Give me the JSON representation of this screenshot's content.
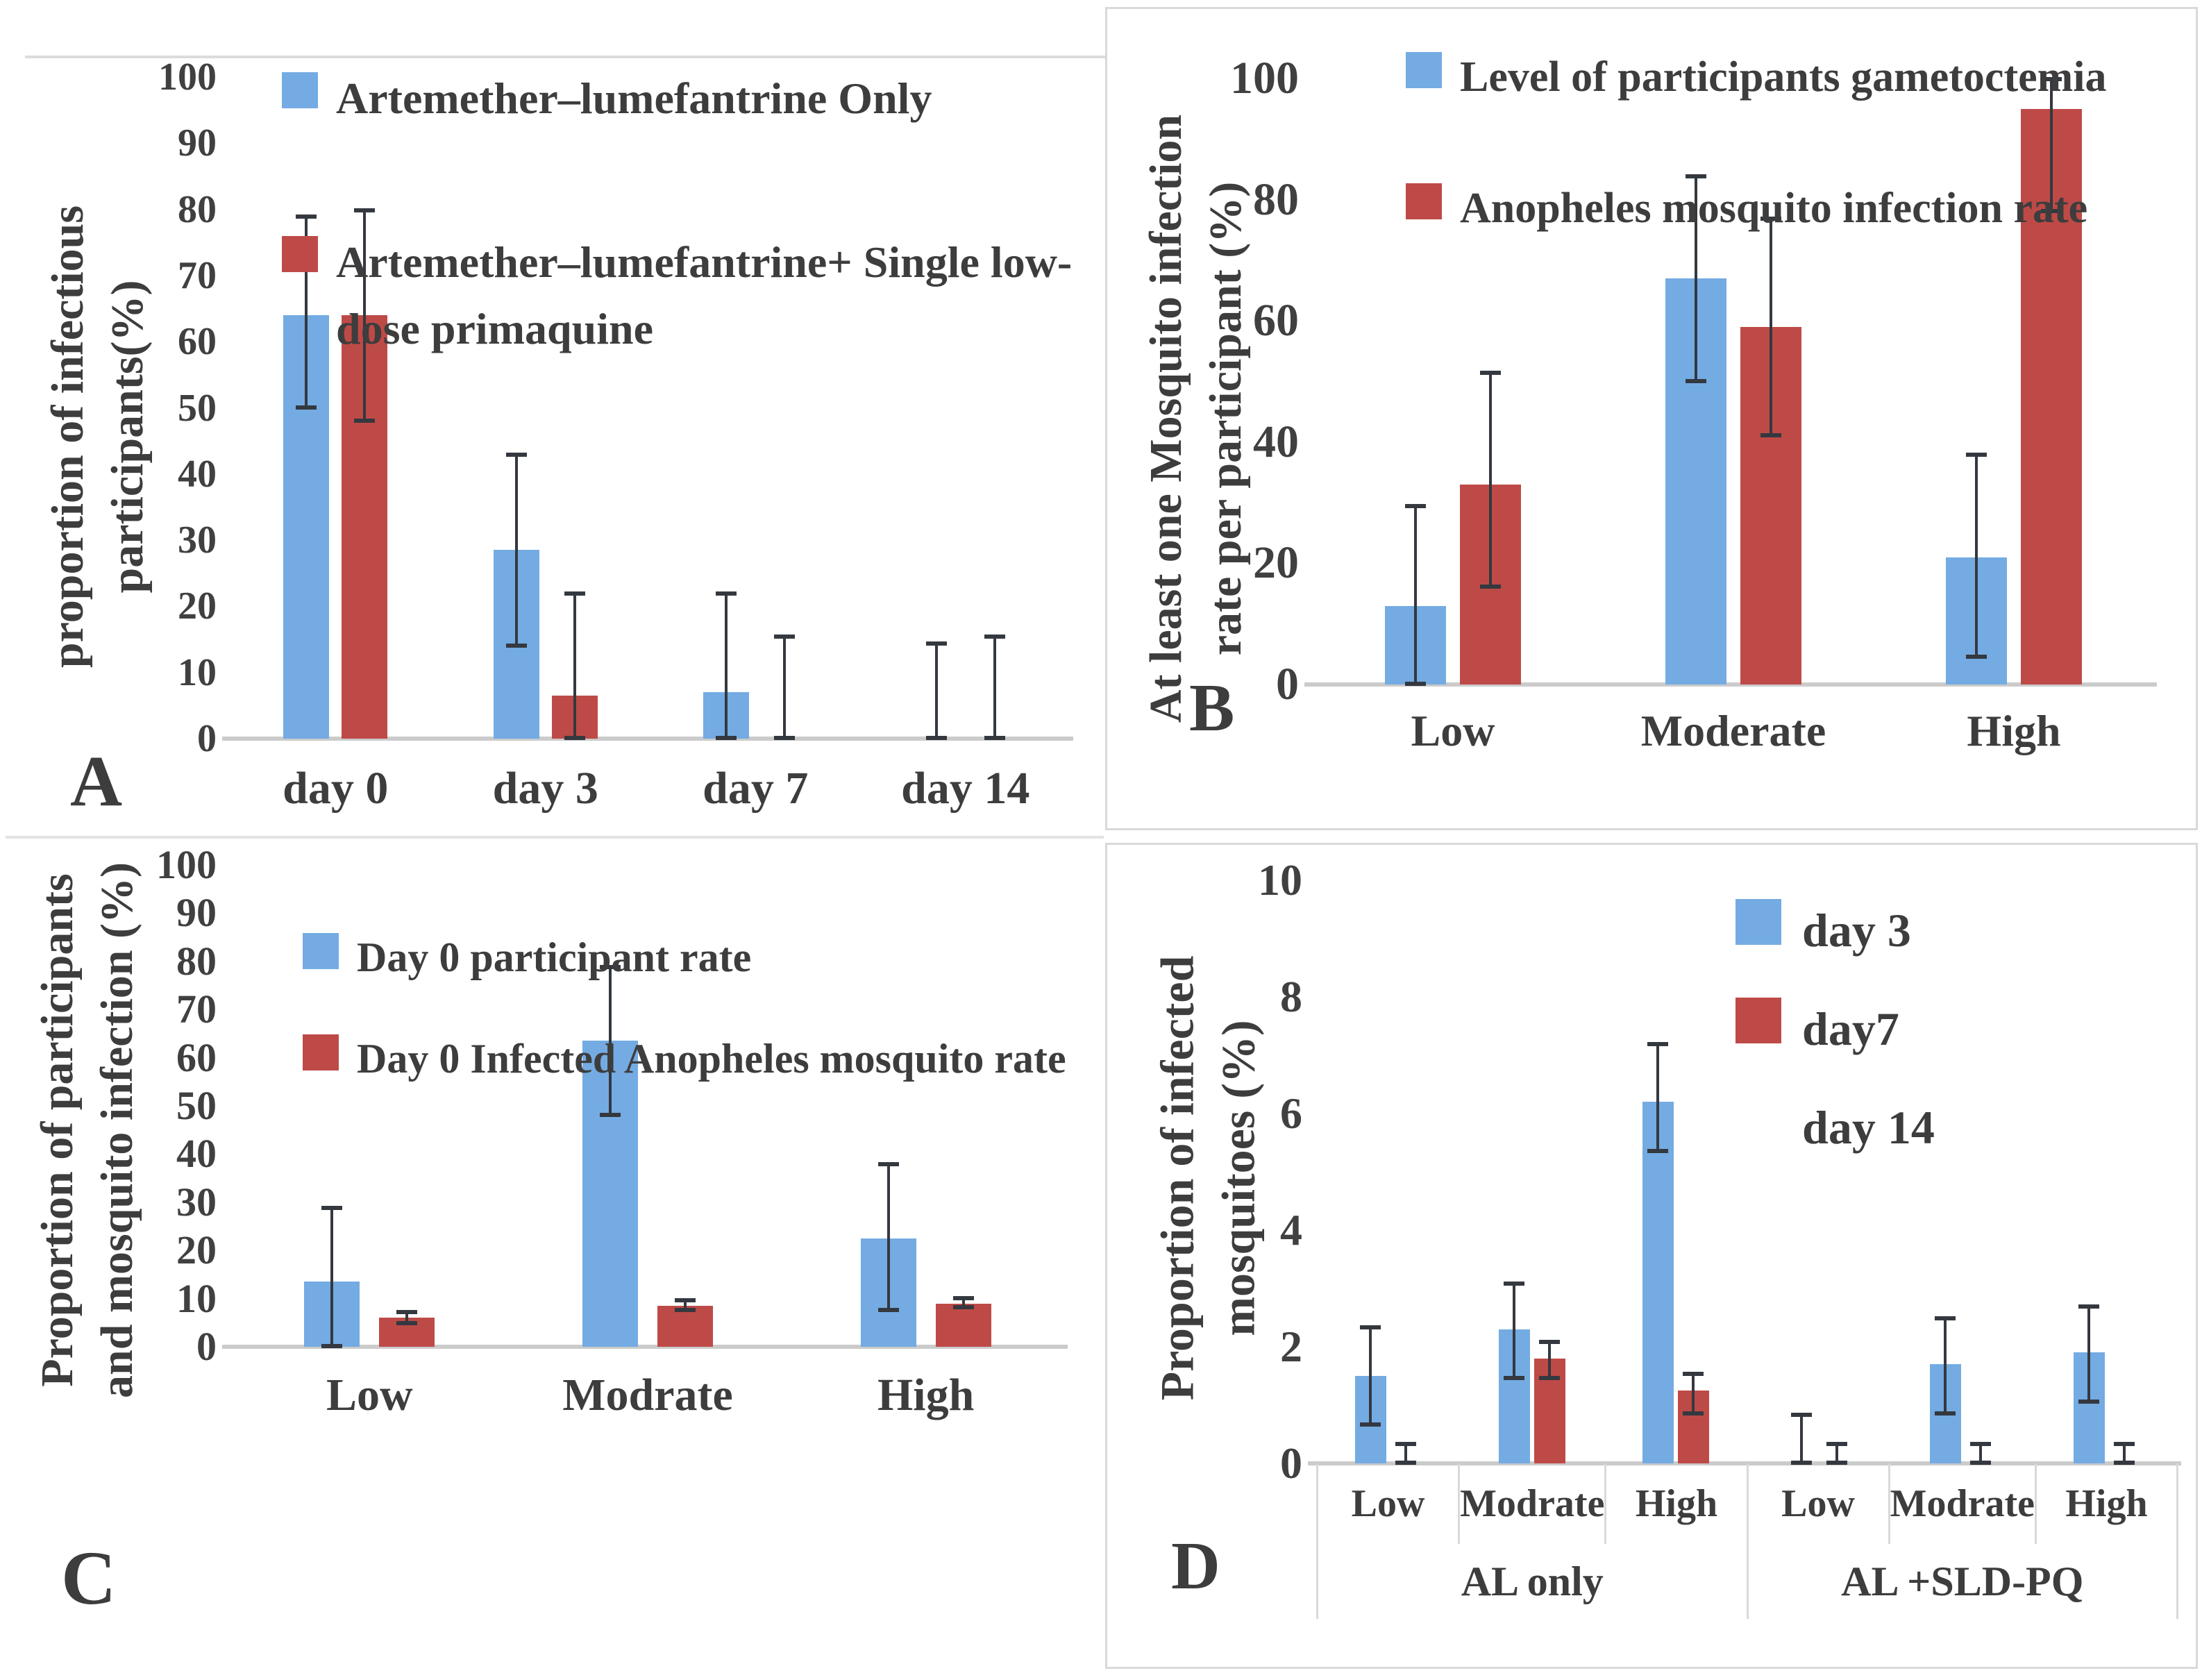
{
  "figure": {
    "background": "#ffffff",
    "panel_border_color": "#d9d9d9",
    "axis_line_color": "#cbcbcb",
    "error_bar_color": "#34383f",
    "text_color": "#3d3d3d",
    "series_blue": "#74ABE2",
    "series_red": "#BE4A47"
  },
  "chart_data": [
    {
      "type": "bar",
      "panel_letter": "A",
      "ylabel": "proportion of infectious participants(%)",
      "ylabel_lines": [
        "proportion of infectious",
        "participants(%)"
      ],
      "ylim": [
        0,
        100
      ],
      "ytick_step": 10,
      "yticks": [
        0,
        10,
        20,
        30,
        40,
        50,
        60,
        70,
        80,
        90,
        100
      ],
      "grid": false,
      "legend_position": "top-inside",
      "categories": [
        "day 0",
        "day 3",
        "day 7",
        "day 14"
      ],
      "legend": [
        {
          "label": "Artemether–lumefantrine Only",
          "color": "#74ABE2"
        },
        {
          "label": "Artemether–lumefantrine+ Single low-dose primaquine",
          "color": "#BE4A47"
        }
      ],
      "series": [
        {
          "name": "Artemether–lumefantrine Only",
          "color": "#74ABE2",
          "values": [
            64,
            28.5,
            7,
            0
          ],
          "err_low": [
            50,
            14,
            0,
            0
          ],
          "err_high": [
            79,
            43,
            22,
            14.5
          ]
        },
        {
          "name": "Artemether–lumefantrine+ Single low-dose primaquine",
          "color": "#BE4A47",
          "values": [
            64,
            6.5,
            0,
            0
          ],
          "err_low": [
            48,
            0,
            0,
            0
          ],
          "err_high": [
            80,
            22,
            15.5,
            15.5
          ]
        }
      ]
    },
    {
      "type": "bar",
      "panel_letter": "B",
      "ylabel": "At least one Mosquito infection rate per participant (%)",
      "ylabel_lines": [
        "At least one Mosquito infection",
        "rate per participant (%)"
      ],
      "ylim": [
        0,
        100
      ],
      "ytick_step": 20,
      "yticks": [
        0,
        20,
        40,
        60,
        80,
        100
      ],
      "grid": false,
      "legend_position": "top-inside",
      "categories": [
        "Low",
        "Moderate",
        "High"
      ],
      "legend": [
        {
          "label": "Level of participants gametoctemia",
          "color": "#74ABE2"
        },
        {
          "label": "Anopheles mosquito infection rate",
          "color": "#BE4A47"
        }
      ],
      "series": [
        {
          "name": "Level of participants gametoctemia",
          "color": "#74ABE2",
          "values": [
            13,
            67,
            21
          ],
          "err_low": [
            0,
            50,
            4.5
          ],
          "err_high": [
            29.5,
            84,
            38
          ]
        },
        {
          "name": "Anopheles mosquito infection rate",
          "color": "#BE4A47",
          "values": [
            33,
            59,
            95
          ],
          "err_low": [
            16,
            41,
            78
          ],
          "err_high": [
            51.5,
            77,
            100
          ]
        }
      ]
    },
    {
      "type": "bar",
      "panel_letter": "C",
      "ylabel": "Proportion of  participants and mosquito infection (%)",
      "ylabel_lines": [
        "Proportion of  participants",
        "and mosquito infection (%)"
      ],
      "ylim": [
        0,
        100
      ],
      "ytick_step": 10,
      "yticks": [
        0,
        10,
        20,
        30,
        40,
        50,
        60,
        70,
        80,
        90,
        100
      ],
      "grid": false,
      "legend_position": "top-inside",
      "categories": [
        "Low",
        "Modrate",
        "High"
      ],
      "legend": [
        {
          "label": "Day 0 participant rate",
          "color": "#74ABE2"
        },
        {
          "label": "Day 0 Infected Anopheles mosquito rate",
          "color": "#BE4A47"
        }
      ],
      "series": [
        {
          "name": "Day 0 participant rate",
          "color": "#74ABE2",
          "values": [
            13.5,
            63.5,
            22.5
          ],
          "err_low": [
            0,
            48,
            7.5
          ],
          "err_high": [
            29,
            79,
            38
          ]
        },
        {
          "name": "Day 0 Infected Anopheles mosquito rate",
          "color": "#BE4A47",
          "values": [
            6,
            8.5,
            9
          ],
          "err_low": [
            4.8,
            7.5,
            8
          ],
          "err_high": [
            7.3,
            9.8,
            10.3
          ]
        }
      ]
    },
    {
      "type": "bar",
      "panel_letter": "D",
      "ylabel": "Proportion of infected mosquitoes (%)",
      "ylabel_lines": [
        "Proportion of infected",
        "mosquitoes (%)"
      ],
      "ylim": [
        0,
        10
      ],
      "ytick_step": 2,
      "yticks": [
        0,
        2,
        4,
        6,
        8,
        10
      ],
      "grid": false,
      "legend_position": "top-right-inside",
      "categories": [
        "Low",
        "Modrate",
        "High",
        "Low",
        "Modrate",
        "High"
      ],
      "groups": [
        {
          "label": "AL only",
          "span": 3
        },
        {
          "label": "AL +SLD-PQ",
          "span": 3
        }
      ],
      "legend": [
        {
          "label": "day 3",
          "color": "#74ABE2"
        },
        {
          "label": "day7",
          "color": "#BE4A47"
        },
        {
          "label": "day 14",
          "color": null
        }
      ],
      "series": [
        {
          "name": "day 3",
          "color": "#74ABE2",
          "values": [
            1.5,
            2.3,
            6.2,
            0,
            1.7,
            1.9
          ],
          "err_low": [
            0.65,
            1.45,
            5.35,
            0,
            0.85,
            1.05
          ],
          "err_high": [
            2.35,
            3.1,
            7.2,
            0.85,
            2.5,
            2.7
          ]
        },
        {
          "name": "day7",
          "color": "#BE4A47",
          "values": [
            0,
            1.8,
            1.25,
            0,
            0,
            0
          ],
          "err_low": [
            0,
            1.45,
            0.85,
            0,
            0,
            0
          ],
          "err_high": [
            0.35,
            2.1,
            1.55,
            0.35,
            0.35,
            0.35
          ]
        },
        {
          "name": "day 14",
          "color": null,
          "values": null
        }
      ]
    }
  ]
}
